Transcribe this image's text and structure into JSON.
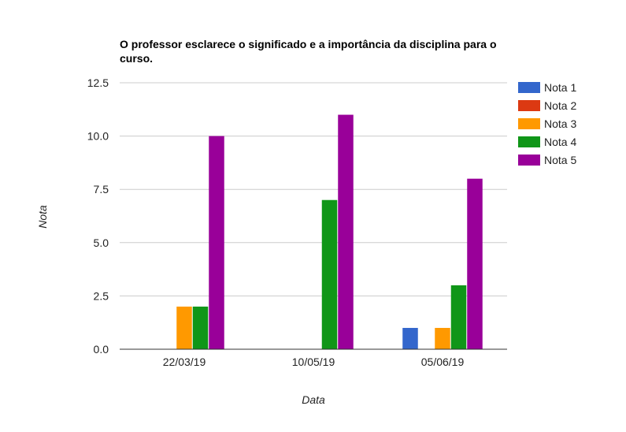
{
  "chart_data": {
    "type": "bar",
    "title_lines": [
      "O professor esclarece o significado e a importância da disciplina para o",
      "curso."
    ],
    "xlabel": "Data",
    "ylabel": "Nota",
    "categories": [
      "22/03/19",
      "10/05/19",
      "05/06/19"
    ],
    "ylim": [
      0,
      12.5
    ],
    "yticks": [
      0,
      2.5,
      5,
      7.5,
      10,
      12.5
    ],
    "ytick_labels": [
      "0.0",
      "2.5",
      "5.0",
      "7.5",
      "10.0",
      "12.5"
    ],
    "grid": true,
    "legend_position": "right",
    "series": [
      {
        "name": "Nota 1",
        "color": "#3366cc",
        "values": [
          0,
          0,
          1
        ]
      },
      {
        "name": "Nota 2",
        "color": "#dc3912",
        "values": [
          0,
          0,
          0
        ]
      },
      {
        "name": "Nota 3",
        "color": "#ff9900",
        "values": [
          2,
          0,
          1
        ]
      },
      {
        "name": "Nota 4",
        "color": "#109618",
        "values": [
          2,
          7,
          3
        ]
      },
      {
        "name": "Nota 5",
        "color": "#990099",
        "values": [
          10,
          11,
          8
        ]
      }
    ]
  }
}
